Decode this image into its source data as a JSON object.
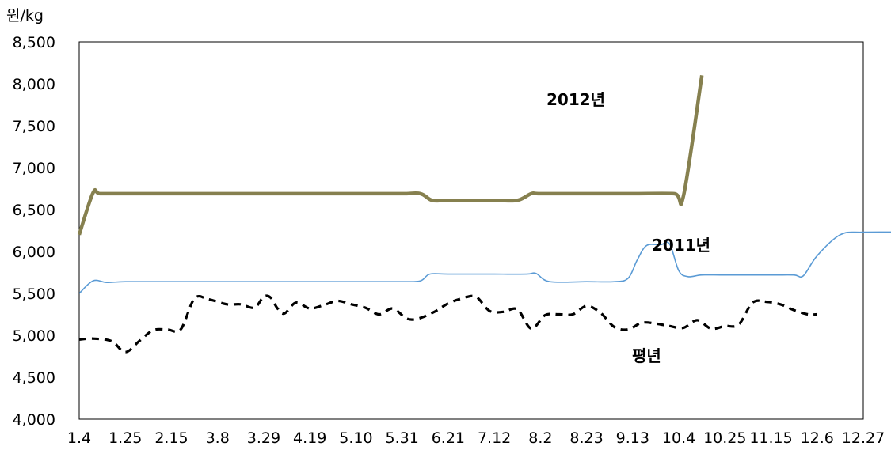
{
  "chart_data": {
    "type": "line",
    "ylabel": "원/kg",
    "ylim": [
      4000,
      8500
    ],
    "yticks": [
      "4,000",
      "4,500",
      "5,000",
      "5,500",
      "6,000",
      "6,500",
      "7,000",
      "7,500",
      "8,000",
      "8,500"
    ],
    "x": [
      "1.4",
      "1.25",
      "2.15",
      "3.8",
      "3.29",
      "4.19",
      "5.10",
      "5.31",
      "6.21",
      "7.12",
      "8.2",
      "8.23",
      "9.13",
      "10.4",
      "10.25",
      "11.15",
      "12.6",
      "12.27"
    ],
    "grid": false,
    "series": [
      {
        "name": "2012년",
        "color": "#86804F",
        "points": [
          [
            0,
            6200
          ],
          [
            0.3,
            6700
          ],
          [
            0.45,
            6690
          ],
          [
            1,
            6690
          ],
          [
            2,
            6690
          ],
          [
            3,
            6690
          ],
          [
            4,
            6690
          ],
          [
            5,
            6690
          ],
          [
            6,
            6690
          ],
          [
            7,
            6690
          ],
          [
            7.4,
            6690
          ],
          [
            7.65,
            6610
          ],
          [
            8,
            6610
          ],
          [
            9,
            6610
          ],
          [
            9.5,
            6610
          ],
          [
            9.8,
            6690
          ],
          [
            10,
            6690
          ],
          [
            11,
            6690
          ],
          [
            12,
            6690
          ],
          [
            12.9,
            6690
          ],
          [
            13.1,
            6660
          ],
          [
            13.5,
            8100
          ]
        ]
      },
      {
        "name": "2011년",
        "color": "#5B9BD5",
        "points": [
          [
            0,
            5500
          ],
          [
            0.3,
            5650
          ],
          [
            0.6,
            5630
          ],
          [
            1,
            5640
          ],
          [
            2,
            5640
          ],
          [
            3,
            5640
          ],
          [
            4,
            5640
          ],
          [
            5,
            5640
          ],
          [
            6,
            5640
          ],
          [
            7,
            5640
          ],
          [
            7.4,
            5650
          ],
          [
            7.6,
            5730
          ],
          [
            8,
            5730
          ],
          [
            9,
            5730
          ],
          [
            9.7,
            5730
          ],
          [
            9.9,
            5740
          ],
          [
            10.2,
            5640
          ],
          [
            11,
            5640
          ],
          [
            11.6,
            5640
          ],
          [
            11.9,
            5680
          ],
          [
            12.1,
            5900
          ],
          [
            12.3,
            6070
          ],
          [
            12.6,
            6080
          ],
          [
            12.8,
            6090
          ],
          [
            13,
            5770
          ],
          [
            13.2,
            5700
          ],
          [
            13.5,
            5720
          ],
          [
            14,
            5720
          ],
          [
            15,
            5720
          ],
          [
            15.5,
            5720
          ],
          [
            15.7,
            5710
          ],
          [
            16,
            5950
          ],
          [
            16.5,
            6200
          ],
          [
            17,
            6230
          ],
          [
            18,
            6230
          ]
        ]
      },
      {
        "name": "평년",
        "color": "#000000",
        "points": [
          [
            0,
            4950
          ],
          [
            0.3,
            4960
          ],
          [
            0.7,
            4930
          ],
          [
            1,
            4800
          ],
          [
            1.3,
            4930
          ],
          [
            1.6,
            5060
          ],
          [
            1.9,
            5070
          ],
          [
            2.2,
            5070
          ],
          [
            2.5,
            5440
          ],
          [
            2.8,
            5430
          ],
          [
            3.2,
            5370
          ],
          [
            3.5,
            5370
          ],
          [
            3.8,
            5330
          ],
          [
            4,
            5460
          ],
          [
            4.15,
            5450
          ],
          [
            4.3,
            5320
          ],
          [
            4.45,
            5260
          ],
          [
            4.7,
            5390
          ],
          [
            5,
            5320
          ],
          [
            5.3,
            5360
          ],
          [
            5.6,
            5410
          ],
          [
            5.9,
            5370
          ],
          [
            6.2,
            5330
          ],
          [
            6.5,
            5250
          ],
          [
            6.8,
            5320
          ],
          [
            7.1,
            5200
          ],
          [
            7.35,
            5200
          ],
          [
            7.7,
            5280
          ],
          [
            8,
            5380
          ],
          [
            8.3,
            5440
          ],
          [
            8.6,
            5460
          ],
          [
            8.9,
            5290
          ],
          [
            9.2,
            5280
          ],
          [
            9.5,
            5310
          ],
          [
            9.8,
            5080
          ],
          [
            10.1,
            5240
          ],
          [
            10.4,
            5250
          ],
          [
            10.7,
            5250
          ],
          [
            11,
            5350
          ],
          [
            11.3,
            5270
          ],
          [
            11.6,
            5100
          ],
          [
            11.9,
            5070
          ],
          [
            12.2,
            5150
          ],
          [
            12.5,
            5140
          ],
          [
            12.8,
            5110
          ],
          [
            13.1,
            5090
          ],
          [
            13.4,
            5180
          ],
          [
            13.7,
            5080
          ],
          [
            14,
            5110
          ],
          [
            14.3,
            5130
          ],
          [
            14.6,
            5390
          ],
          [
            14.9,
            5400
          ],
          [
            15.2,
            5370
          ],
          [
            15.5,
            5300
          ],
          [
            15.8,
            5250
          ],
          [
            16,
            5250
          ]
        ]
      }
    ],
    "labels": {
      "2012": "2012년",
      "2011": "2011년",
      "normal": "평년"
    }
  }
}
